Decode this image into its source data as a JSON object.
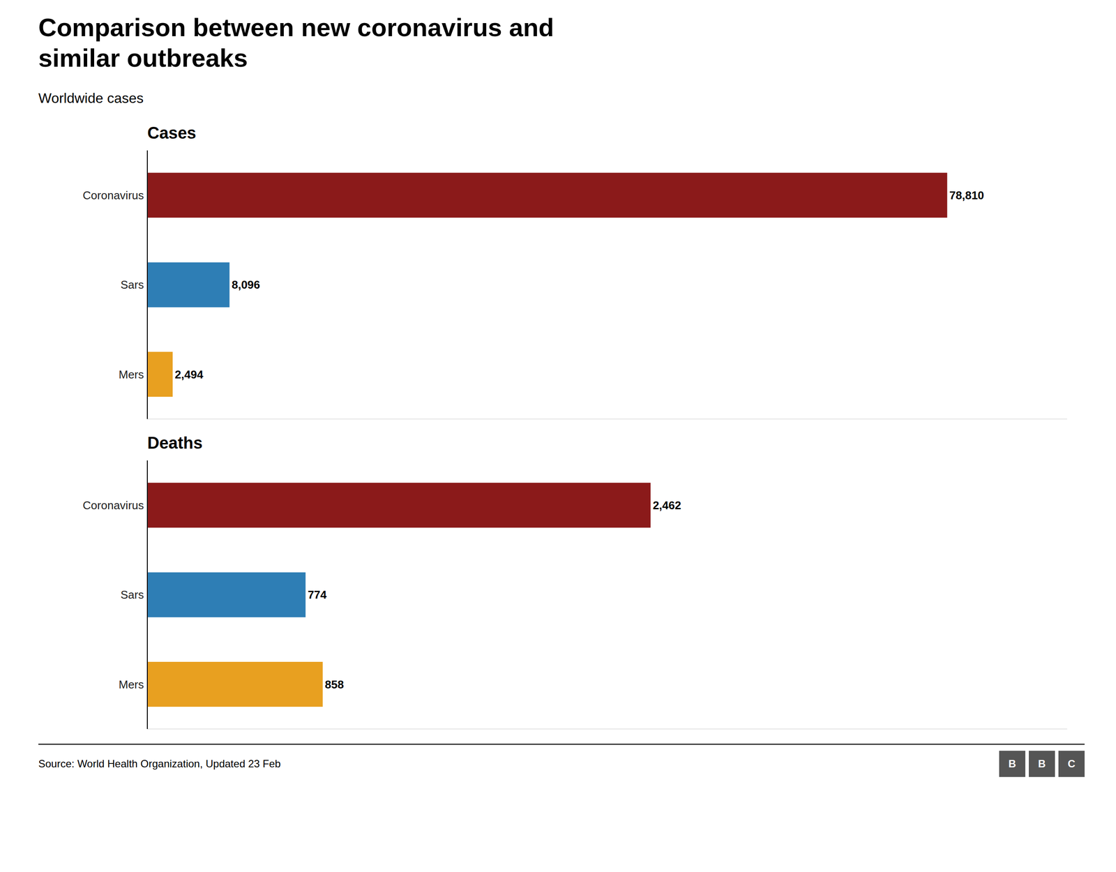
{
  "title": "Comparison between new coronavirus and\nsimilar outbreaks",
  "subtitle": "Worldwide cases",
  "annotations": [
    "Source: World Health Organization, Updated 23 Feb",
    "BBC"
  ],
  "chart_data": [
    {
      "type": "bar",
      "orientation": "horizontal",
      "title": "Cases",
      "categories": [
        "Coronavirus",
        "Sars",
        "Mers"
      ],
      "values": [
        78810,
        8096,
        2494
      ],
      "value_labels": [
        "78,810",
        "8,096",
        "2,494"
      ],
      "colors": [
        "#8B1A1A",
        "#2E7EB5",
        "#E8A020"
      ],
      "xlim": [
        0,
        90631.5
      ],
      "data_labels": true,
      "tick_labels": "y",
      "grid": false
    },
    {
      "type": "bar",
      "orientation": "horizontal",
      "title": "Deaths",
      "categories": [
        "Coronavirus",
        "Sars",
        "Mers"
      ],
      "values": [
        2462,
        774,
        858
      ],
      "value_labels": [
        "2,462",
        "774",
        "858"
      ],
      "colors": [
        "#8B1A1A",
        "#2E7EB5",
        "#E8A020"
      ],
      "xlim": [
        0,
        4500
      ],
      "data_labels": true,
      "tick_labels": "y",
      "grid": false
    }
  ]
}
